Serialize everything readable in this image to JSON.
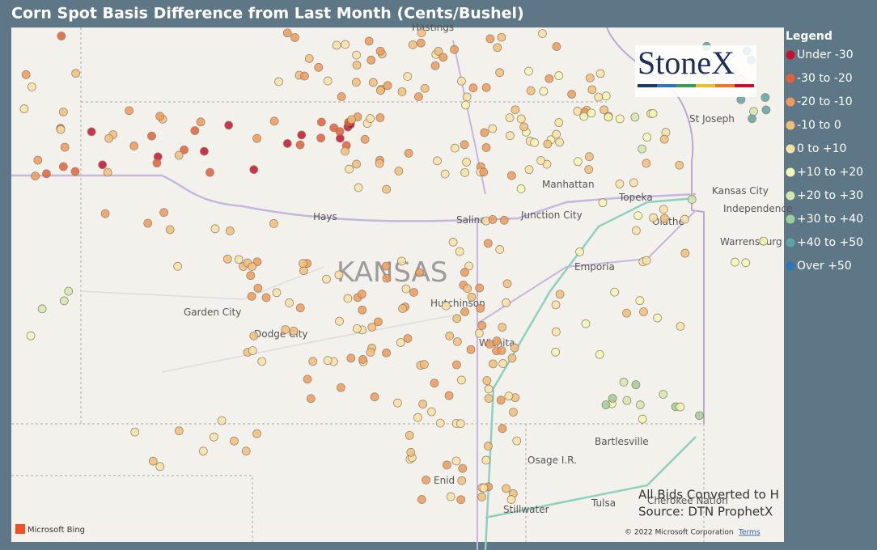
{
  "title": "Corn Spot Basis Difference from Last Month (Cents/Bushel)",
  "legend": {
    "title": "Legend",
    "items": [
      {
        "label": "Under -30",
        "color": "#c8102e"
      },
      {
        "label": "-30 to -20",
        "color": "#e5603a"
      },
      {
        "label": "-20 to -10",
        "color": "#f0995a"
      },
      {
        "label": "-10 to 0",
        "color": "#f5be78"
      },
      {
        "label": "0 to +10",
        "color": "#fbe2a6"
      },
      {
        "label": "+10 to +20",
        "color": "#f6f7b4"
      },
      {
        "label": "+20 to +30",
        "color": "#d3e8ae"
      },
      {
        "label": "+30 to +40",
        "color": "#9ccf98"
      },
      {
        "label": "+40 to +50",
        "color": "#5fa3a6"
      },
      {
        "label": "Over +50",
        "color": "#2e75b6"
      }
    ]
  },
  "state_label": "KANSAS",
  "map_labels": [
    "Hastings",
    "Hays",
    "Salina",
    "Junction City",
    "Manhattan",
    "Topeka",
    "Kansas City",
    "Independence",
    "Olathe",
    "Warrensburg",
    "Emporia",
    "Hutchinson",
    "Wichita",
    "Garden City",
    "Dodge City",
    "Bartlesville",
    "Osage I.R.",
    "Enid",
    "Stillwater",
    "Tulsa",
    "Cherokee Nation",
    "St Joseph"
  ],
  "logo": "StoneX",
  "notes": [
    "All Bids Converted to H",
    "Source: DTN ProphetX"
  ],
  "bing": "Microsoft Bing",
  "attribution": "© 2022 Microsoft Corporation",
  "terms": "Terms"
}
